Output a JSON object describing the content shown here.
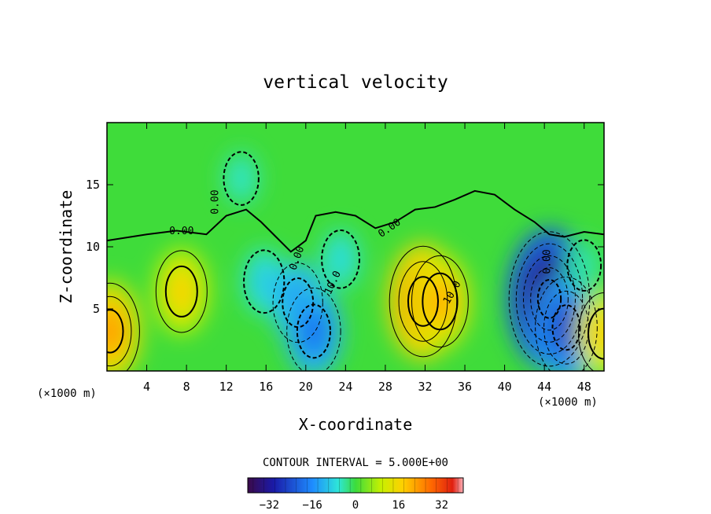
{
  "chart_data": {
    "type": "heatmap",
    "title": "vertical velocity",
    "xlabel": "X-coordinate",
    "ylabel": "Z-coordinate",
    "x_unit": "(×1000 m)",
    "x_unit_right": "(×1000 m)",
    "xlim": [
      0,
      50
    ],
    "ylim": [
      0,
      20
    ],
    "x_ticks": [
      4,
      8,
      12,
      16,
      20,
      24,
      28,
      32,
      36,
      40,
      44,
      48
    ],
    "y_ticks": [
      5,
      10,
      15
    ],
    "contour_interval_text": "CONTOUR INTERVAL = 5.000E+00",
    "colorbar": {
      "range": [
        -40,
        40
      ],
      "ticks": [
        -32,
        -16,
        0,
        16,
        32
      ],
      "tick_labels": [
        "−32",
        "−16",
        "0",
        "16",
        "32"
      ]
    },
    "contour_labels": [
      {
        "text": "0.00",
        "x": 7.5,
        "y": 11.0,
        "rotate": 0
      },
      {
        "text": "0.00",
        "x": 11.2,
        "y": 13.6,
        "rotate": -90
      },
      {
        "text": "0.00",
        "x": 19.4,
        "y": 9.0,
        "rotate": -70
      },
      {
        "text": "0.00",
        "x": 28.6,
        "y": 11.3,
        "rotate": -35
      },
      {
        "text": "0.00",
        "x": 44.6,
        "y": 8.8,
        "rotate": -90
      },
      {
        "text": "10.0",
        "x": 23.0,
        "y": 7.0,
        "rotate": -65
      },
      {
        "text": "10.0",
        "x": 35.0,
        "y": 6.2,
        "rotate": -60
      }
    ],
    "features": [
      {
        "x": 0.3,
        "y": 3.2,
        "value": 24
      },
      {
        "x": 7.5,
        "y": 6.4,
        "value": 18
      },
      {
        "x": 13.5,
        "y": 15.5,
        "value": -6
      },
      {
        "x": 15.8,
        "y": 7.2,
        "value": -10
      },
      {
        "x": 19.2,
        "y": 5.5,
        "value": -17
      },
      {
        "x": 20.8,
        "y": 3.2,
        "value": -20
      },
      {
        "x": 23.5,
        "y": 9.0,
        "value": -8
      },
      {
        "x": 31.8,
        "y": 5.6,
        "value": 30
      },
      {
        "x": 33.5,
        "y": 5.6,
        "value": 22
      },
      {
        "x": 44.5,
        "y": 5.8,
        "value": -40
      },
      {
        "x": 46.2,
        "y": 3.5,
        "value": -26
      },
      {
        "x": 48.0,
        "y": 8.5,
        "value": -5
      },
      {
        "x": 50.0,
        "y": 3.0,
        "value": 18
      }
    ]
  }
}
